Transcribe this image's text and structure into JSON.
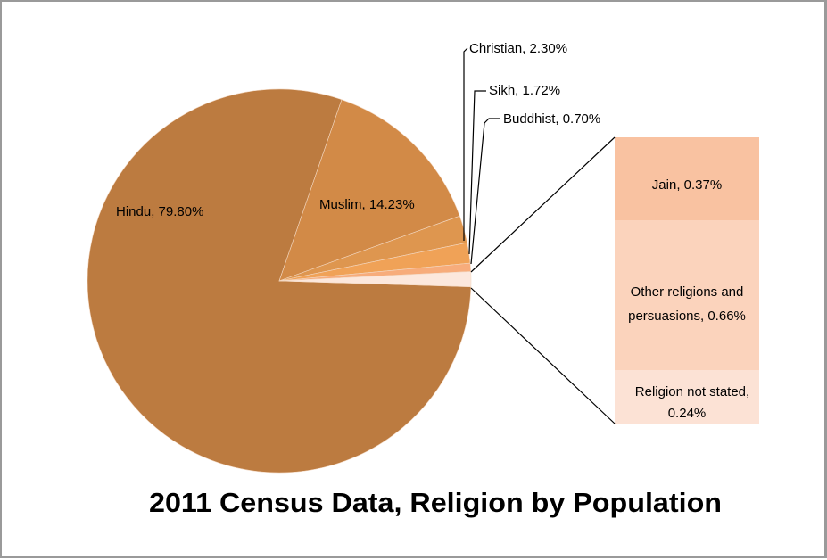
{
  "chart_data": {
    "type": "pie",
    "subtype": "bar-of-pie",
    "title": "2011 Census Data, Religion by Population",
    "categories": [
      "Hindu",
      "Muslim",
      "Christian",
      "Sikh",
      "Buddhist",
      "Jain",
      "Other religions and persuasions",
      "Religion not stated"
    ],
    "values": [
      79.8,
      14.23,
      2.3,
      1.72,
      0.7,
      0.37,
      0.66,
      0.24
    ],
    "unit": "%",
    "pie_slices": [
      {
        "name": "Hindu",
        "value": 79.8,
        "label": "Hindu, 79.80%",
        "color": "#BC7B40"
      },
      {
        "name": "Muslim",
        "value": 14.23,
        "label": "Muslim, 14.23%",
        "color": "#D28A47"
      },
      {
        "name": "Christian",
        "value": 2.3,
        "label": "Christian, 2.30%",
        "color": "#DE964F"
      },
      {
        "name": "Sikh",
        "value": 1.72,
        "label": "Sikh, 1.72%",
        "color": "#F0A257"
      },
      {
        "name": "Buddhist",
        "value": 0.7,
        "label": "Buddhist, 0.70%",
        "color": "#F7AC7B"
      },
      {
        "name": "Other (combined)",
        "value": 1.27,
        "label": "",
        "color": "#FCE8DD"
      }
    ],
    "bar_segments": [
      {
        "name": "Jain",
        "value": 0.37,
        "label_lines": [
          "Jain, 0.37%"
        ],
        "color": "#F9C2A1"
      },
      {
        "name": "Other religions and persuasions",
        "value": 0.66,
        "label_lines": [
          "Other religions and",
          "persuasions, 0.66%"
        ],
        "color": "#FBD3BC"
      },
      {
        "name": "Religion not stated",
        "value": 0.24,
        "label_lines": [
          "Religion not stated,",
          "0.24%"
        ],
        "color": "#FCE2D5"
      }
    ],
    "legend": null,
    "data_labels": "category, percentage"
  },
  "title": "2011 Census Data, Religion by Population",
  "labels": {
    "hindu": "Hindu, 79.80%",
    "muslim": "Muslim, 14.23%",
    "christian": "Christian, 2.30%",
    "sikh": "Sikh, 1.72%",
    "buddhist": "Buddhist, 0.70%",
    "jain": "Jain, 0.37%",
    "other_line1": "Other religions and",
    "other_line2": "persuasions, 0.66%",
    "not_stated_line1": "Religion not stated,",
    "not_stated_line2": "0.24%"
  }
}
